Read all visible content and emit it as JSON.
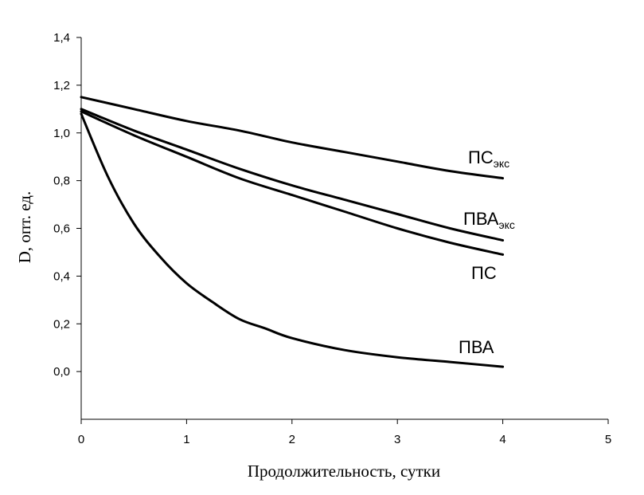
{
  "chart_data": {
    "type": "line",
    "xlabel": "Продолжительность, сутки",
    "ylabel": "D, опт. ед.",
    "xlim": [
      0,
      5
    ],
    "ylim": [
      -0.2,
      1.4
    ],
    "x_ticks": [
      "0",
      "1",
      "2",
      "3",
      "4",
      "5"
    ],
    "y_ticks": [
      "0,0",
      "0,2",
      "0,4",
      "0,6",
      "0,8",
      "1,0",
      "1,2",
      "1,4"
    ],
    "grid": false,
    "series": [
      {
        "name": "ПСэкс",
        "label_main": "ПС",
        "label_sub": "экс",
        "x": [
          0,
          0.5,
          1,
          1.5,
          2,
          2.5,
          3,
          3.5,
          4
        ],
        "y": [
          1.15,
          1.1,
          1.05,
          1.01,
          0.96,
          0.92,
          0.88,
          0.84,
          0.81
        ]
      },
      {
        "name": "ПВАэкс",
        "label_main": "ПВА",
        "label_sub": "экс",
        "x": [
          0,
          0.5,
          1,
          1.5,
          2,
          2.5,
          3,
          3.5,
          4
        ],
        "y": [
          1.1,
          1.01,
          0.93,
          0.85,
          0.78,
          0.72,
          0.66,
          0.6,
          0.55
        ]
      },
      {
        "name": "ПС",
        "label_main": "ПС",
        "label_sub": "",
        "x": [
          0,
          0.5,
          1,
          1.5,
          2,
          2.5,
          3,
          3.5,
          4
        ],
        "y": [
          1.09,
          0.99,
          0.9,
          0.81,
          0.74,
          0.67,
          0.6,
          0.54,
          0.49
        ]
      },
      {
        "name": "ПВА",
        "label_main": "ПВА",
        "label_sub": "",
        "x": [
          0,
          0.25,
          0.5,
          0.75,
          1,
          1.25,
          1.5,
          1.75,
          2,
          2.5,
          3,
          3.5,
          4
        ],
        "y": [
          1.08,
          0.82,
          0.62,
          0.48,
          0.37,
          0.29,
          0.22,
          0.18,
          0.14,
          0.09,
          0.06,
          0.04,
          0.02
        ]
      }
    ]
  }
}
